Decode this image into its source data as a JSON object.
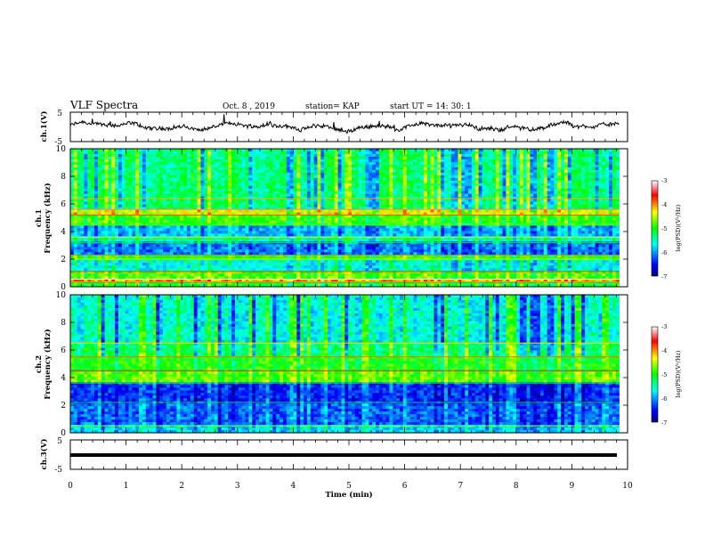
{
  "header": {
    "title": "VLF Spectra",
    "date": "Oct. 8 , 2019",
    "station": "station= KAP",
    "start": "start UT = 14: 30: 1"
  },
  "chart_data": [
    {
      "type": "line",
      "panel": "ch1-waveform",
      "ylabel": "ch.1(V)",
      "ylim": [
        -5,
        5
      ],
      "yticks": [
        "5",
        "-5"
      ],
      "xlim": [
        0,
        10
      ],
      "description_values": {
        "typical_range_v": [
          -2.2,
          1.8
        ]
      }
    },
    {
      "type": "heatmap",
      "panel": "ch1-spectrogram",
      "ylabel": "ch.1\nFrequency (kHz)",
      "ylabel_lines": [
        "ch.1",
        "Frequency (kHz)"
      ],
      "ylim": [
        0,
        10
      ],
      "yticks": [
        "0",
        "2",
        "4",
        "6",
        "8",
        "10"
      ],
      "xlim": [
        0,
        9.85
      ],
      "colorbar": {
        "label": "log(PSD)(V²/Hz)",
        "range": [
          -7,
          -3
        ],
        "ticks": [
          "-3",
          "-4",
          "-5",
          "-6",
          "-7"
        ]
      },
      "bands_khz": [
        {
          "from": 0.0,
          "to": 0.3,
          "level": -5.0
        },
        {
          "from": 0.3,
          "to": 0.55,
          "level": -4.0
        },
        {
          "from": 0.55,
          "to": 1.1,
          "level": -4.8
        },
        {
          "from": 1.1,
          "to": 2.0,
          "level": -5.6
        },
        {
          "from": 2.0,
          "to": 2.3,
          "level": -5.0
        },
        {
          "from": 2.3,
          "to": 3.2,
          "level": -6.1
        },
        {
          "from": 3.2,
          "to": 3.6,
          "level": -5.4
        },
        {
          "from": 3.6,
          "to": 4.5,
          "level": -5.9
        },
        {
          "from": 4.5,
          "to": 5.2,
          "level": -4.9
        },
        {
          "from": 5.2,
          "to": 5.6,
          "level": -4.4
        },
        {
          "from": 5.6,
          "to": 6.4,
          "level": -5.2
        },
        {
          "from": 6.4,
          "to": 10.0,
          "level": -5.3
        }
      ]
    },
    {
      "type": "heatmap",
      "panel": "ch2-spectrogram",
      "ylabel": "ch.2\nFrequency (kHz)",
      "ylabel_lines": [
        "ch.2",
        "Frequency (kHz)"
      ],
      "ylim": [
        0,
        10
      ],
      "yticks": [
        "0",
        "2",
        "4",
        "6",
        "8",
        "10"
      ],
      "xlim": [
        0,
        9.85
      ],
      "colorbar": {
        "label": "log(PSD)(V²/Hz)",
        "range": [
          -7,
          -3
        ],
        "ticks": [
          "-3",
          "-4",
          "-5",
          "-6",
          "-7"
        ]
      },
      "bands_khz": [
        {
          "from": 0.0,
          "to": 0.5,
          "level": -5.8
        },
        {
          "from": 0.5,
          "to": 2.2,
          "level": -6.2
        },
        {
          "from": 2.2,
          "to": 3.6,
          "level": -6.4
        },
        {
          "from": 3.6,
          "to": 4.5,
          "level": -4.8
        },
        {
          "from": 4.5,
          "to": 5.5,
          "level": -5.0
        },
        {
          "from": 5.5,
          "to": 6.5,
          "level": -5.3
        },
        {
          "from": 6.5,
          "to": 10.0,
          "level": -5.6
        }
      ]
    },
    {
      "type": "line",
      "panel": "ch3-waveform",
      "ylabel": "ch.3(V)",
      "ylim": [
        -5,
        5
      ],
      "yticks": [
        "5",
        "-5"
      ],
      "xlim": [
        0,
        10
      ],
      "constant_value_v": 0
    }
  ],
  "xaxis": {
    "label": "Time (min)",
    "range": [
      0,
      10
    ],
    "ticks": [
      "0",
      "1",
      "2",
      "3",
      "4",
      "5",
      "6",
      "7",
      "8",
      "9",
      "10"
    ]
  }
}
